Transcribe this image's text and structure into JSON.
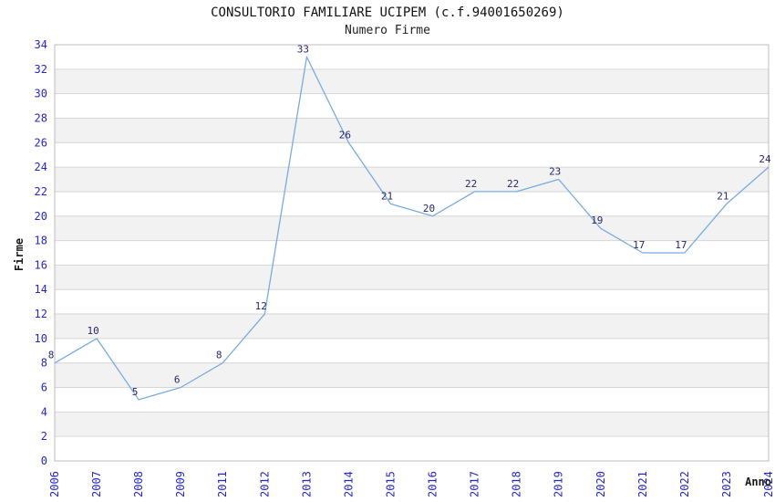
{
  "chart_data": {
    "type": "line",
    "title": "CONSULTORIO FAMILIARE UCIPEM (c.f.94001650269)",
    "subtitle": "Numero Firme",
    "xlabel": "Anno",
    "ylabel": "Firme",
    "categories": [
      "2006",
      "2007",
      "2008",
      "2009",
      "2011",
      "2012",
      "2013",
      "2014",
      "2015",
      "2016",
      "2017",
      "2018",
      "2019",
      "2020",
      "2021",
      "2022",
      "2023",
      "2024"
    ],
    "values": [
      8,
      10,
      5,
      6,
      8,
      12,
      33,
      26,
      21,
      20,
      22,
      22,
      23,
      19,
      17,
      17,
      21,
      24
    ],
    "ylim": [
      0,
      34
    ],
    "ytick_step": 2,
    "yticks": [
      0,
      2,
      4,
      6,
      8,
      10,
      12,
      14,
      16,
      18,
      20,
      22,
      24,
      26,
      28,
      30,
      32,
      34
    ],
    "grid": true,
    "legend": "none",
    "colors": {
      "line": "#79abdf",
      "point_label": "#27276d",
      "tick_label": "#2525cf",
      "band": "#f2f2f2",
      "grid": "#d6d6d6",
      "border": "#bcbcbc",
      "axis_title": "#1a1a1a",
      "background": "#ffffff"
    }
  }
}
